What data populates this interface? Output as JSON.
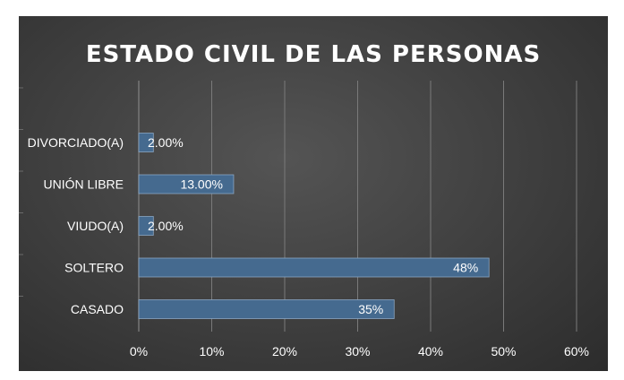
{
  "chart_data": {
    "type": "bar",
    "orientation": "horizontal",
    "title": "ESTADO CIVIL DE LAS PERSONAS",
    "categories": [
      "DIVORCIADO(A)",
      "UNIÓN LIBRE",
      "VIUDO(A)",
      "SOLTERO",
      "CASADO"
    ],
    "values": [
      2,
      13,
      2,
      48,
      35
    ],
    "data_labels": [
      "2.00%",
      "13.00%",
      "2.00%",
      "48%",
      "35%"
    ],
    "xticks": [
      "0%",
      "10%",
      "20%",
      "30%",
      "40%",
      "50%",
      "60%"
    ],
    "xlim": [
      0,
      60
    ],
    "grid": true,
    "colors": {
      "bar": "#456a8f",
      "bar_edge": "#8aa6c2",
      "grid": "#7a7a7a",
      "text": "#ffffff"
    }
  }
}
